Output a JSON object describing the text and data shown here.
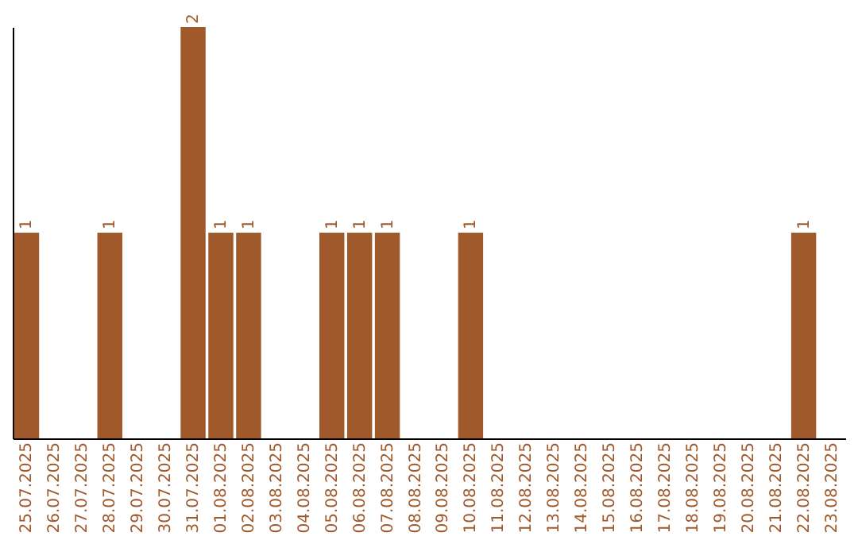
{
  "chart_data": {
    "type": "bar",
    "categories": [
      "25.07.2025",
      "26.07.2025",
      "27.07.2025",
      "28.07.2025",
      "29.07.2025",
      "30.07.2025",
      "31.07.2025",
      "01.08.2025",
      "02.08.2025",
      "03.08.2025",
      "04.08.2025",
      "05.08.2025",
      "06.08.2025",
      "07.08.2025",
      "08.08.2025",
      "09.08.2025",
      "10.08.2025",
      "11.08.2025",
      "12.08.2025",
      "13.08.2025",
      "14.08.2025",
      "15.08.2025",
      "16.08.2025",
      "17.08.2025",
      "18.08.2025",
      "19.08.2025",
      "20.08.2025",
      "21.08.2025",
      "22.08.2025",
      "23.08.2025"
    ],
    "values": [
      1,
      0,
      0,
      1,
      0,
      0,
      2,
      1,
      1,
      0,
      0,
      1,
      1,
      1,
      0,
      0,
      1,
      0,
      0,
      0,
      0,
      0,
      0,
      0,
      0,
      0,
      0,
      0,
      1,
      0
    ],
    "value_labels": [
      "1",
      null,
      null,
      "1",
      null,
      null,
      "2",
      "1",
      "1",
      null,
      null,
      "1",
      "1",
      "1",
      null,
      null,
      "1",
      null,
      null,
      null,
      null,
      null,
      null,
      null,
      null,
      null,
      null,
      null,
      "1",
      null
    ],
    "color": "#a0592b",
    "tick_labels": "x",
    "grid": false
  }
}
